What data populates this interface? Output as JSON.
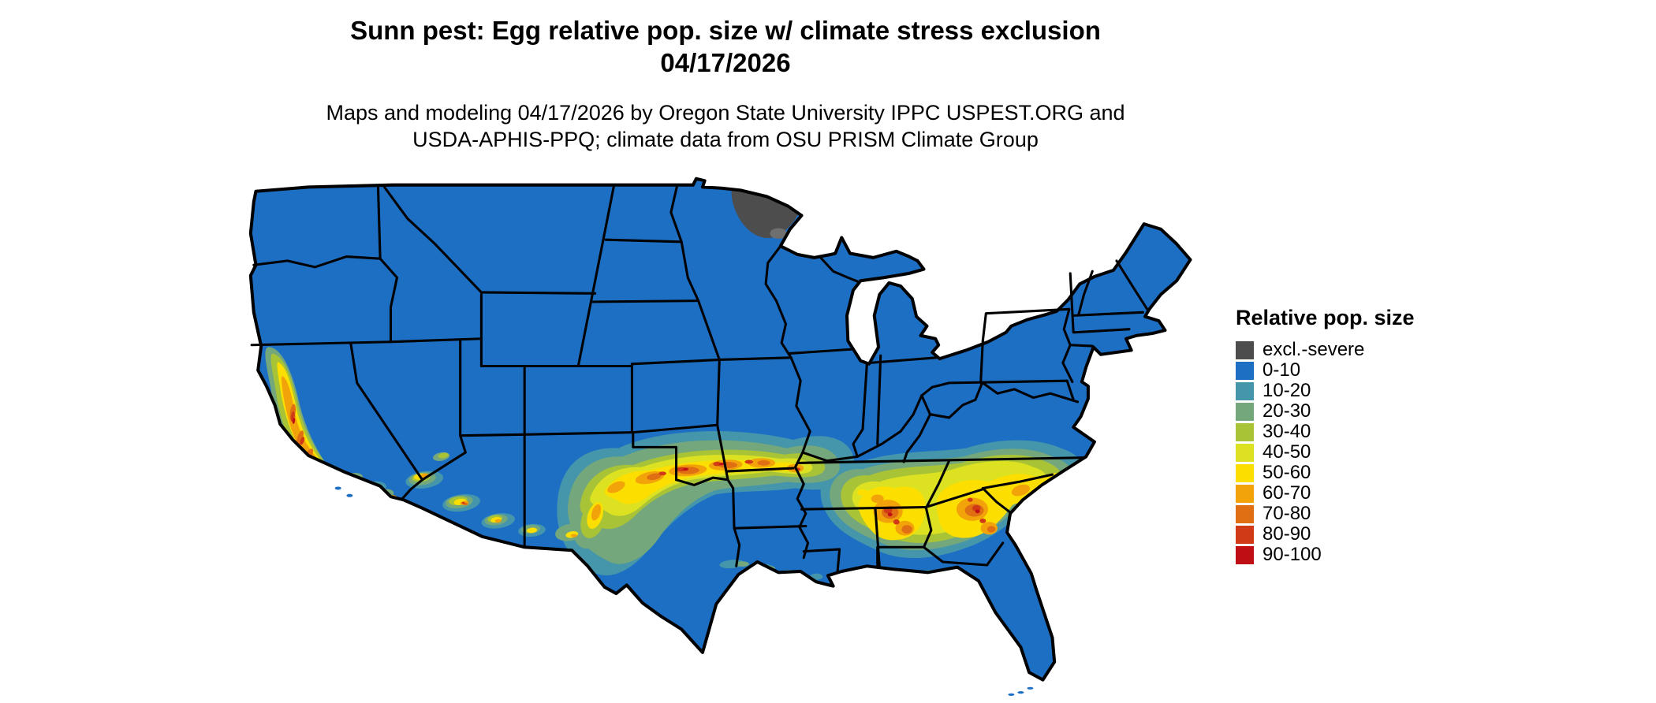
{
  "title": {
    "line1": "Sunn pest: Egg relative pop. size w/ climate stress exclusion",
    "line2": "04/17/2026"
  },
  "subtitle": {
    "line1": "Maps and modeling 04/17/2026 by Oregon State University IPPC USPEST.ORG and",
    "line2": "USDA-APHIS-PPQ; climate data from OSU PRISM Climate Group"
  },
  "legend": {
    "title": "Relative pop. size",
    "items": [
      {
        "label": "excl.-severe",
        "color_key": "excl"
      },
      {
        "label": "0-10",
        "color_key": "pop0"
      },
      {
        "label": "10-20",
        "color_key": "pop10"
      },
      {
        "label": "20-30",
        "color_key": "pop20"
      },
      {
        "label": "30-40",
        "color_key": "pop30"
      },
      {
        "label": "40-50",
        "color_key": "pop40"
      },
      {
        "label": "50-60",
        "color_key": "pop50"
      },
      {
        "label": "60-70",
        "color_key": "pop60"
      },
      {
        "label": "70-80",
        "color_key": "pop70"
      },
      {
        "label": "80-90",
        "color_key": "pop80"
      },
      {
        "label": "90-100",
        "color_key": "pop90"
      }
    ]
  },
  "colors": {
    "excl": "#4d4d4d",
    "gray2": "#6f6f6f",
    "pop0": "#1d6fc4",
    "pop10": "#4596ab",
    "pop20": "#74a77c",
    "pop30": "#a9c337",
    "pop40": "#dce221",
    "pop50": "#fcdf00",
    "pop60": "#f2a30a",
    "pop70": "#e06e12",
    "pop80": "#d03a16",
    "pop90": "#bf0e14",
    "border": "#000000",
    "background": "#ffffff"
  }
}
